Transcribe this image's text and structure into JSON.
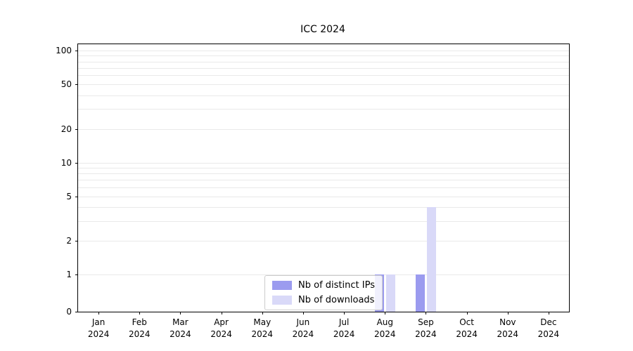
{
  "chart_data": {
    "type": "bar",
    "title": "ICC 2024",
    "categories": [
      {
        "month": "Jan",
        "year": "2024"
      },
      {
        "month": "Feb",
        "year": "2024"
      },
      {
        "month": "Mar",
        "year": "2024"
      },
      {
        "month": "Apr",
        "year": "2024"
      },
      {
        "month": "May",
        "year": "2024"
      },
      {
        "month": "Jun",
        "year": "2024"
      },
      {
        "month": "Jul",
        "year": "2024"
      },
      {
        "month": "Aug",
        "year": "2024"
      },
      {
        "month": "Sep",
        "year": "2024"
      },
      {
        "month": "Oct",
        "year": "2024"
      },
      {
        "month": "Nov",
        "year": "2024"
      },
      {
        "month": "Dec",
        "year": "2024"
      }
    ],
    "series": [
      {
        "name": "Nb of distinct IPs",
        "color": "#9b9bef",
        "values": [
          0,
          0,
          0,
          0,
          0,
          0,
          0,
          1,
          1,
          0,
          0,
          0
        ]
      },
      {
        "name": "Nb of downloads",
        "color": "#d9d9f8",
        "values": [
          0,
          0,
          0,
          0,
          0,
          0,
          0,
          1,
          4,
          0,
          0,
          0
        ]
      }
    ],
    "yticks": [
      100,
      50,
      20,
      10,
      5,
      2,
      1,
      0
    ],
    "yscale": "symlog",
    "ylim": [
      0,
      120
    ],
    "grid": "horizontal-log-minor",
    "legend_position": "lower center inside plot"
  }
}
